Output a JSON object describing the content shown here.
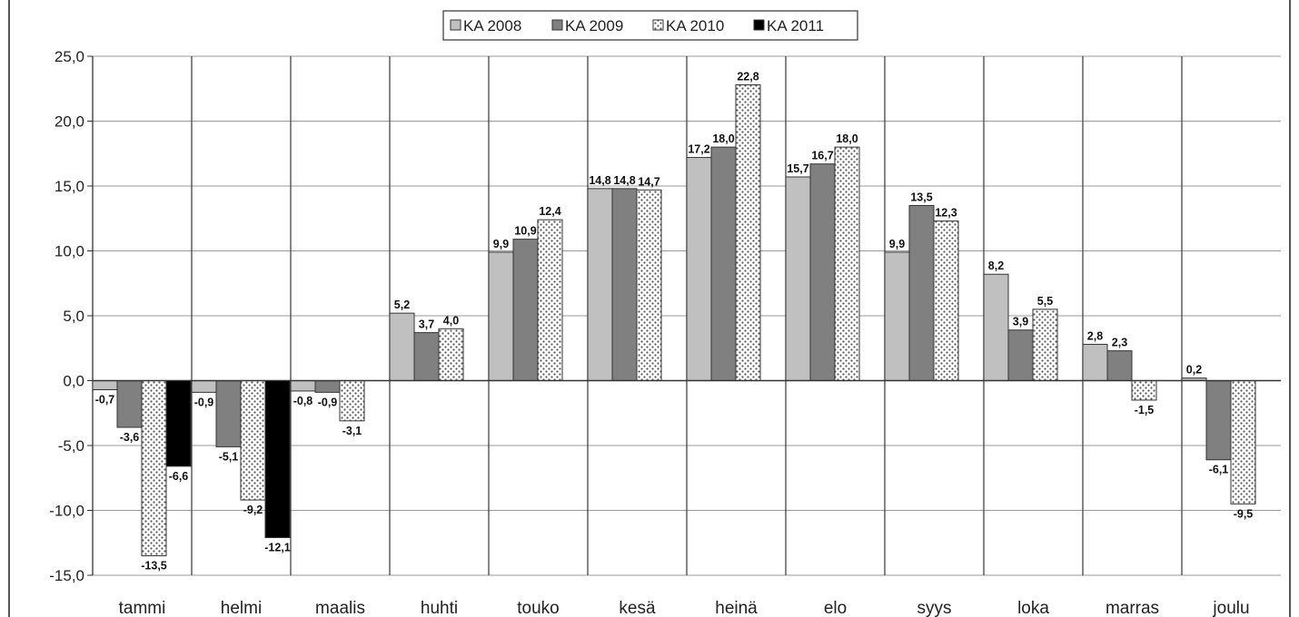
{
  "chart_data": {
    "type": "bar",
    "subtitle": "",
    "categories": [
      "tammi",
      "helmi",
      "maalis",
      "huhti",
      "touko",
      "kesä",
      "heinä",
      "elo",
      "syys",
      "loka",
      "marras",
      "joulu"
    ],
    "series": [
      {
        "name": "KA 2008",
        "color": "#c0c0c0",
        "pattern": "solid",
        "labels": [
          "-0,7",
          "-0,9",
          "-0,8",
          "5,2",
          "9,9",
          "14,8",
          "17,2",
          "15,7",
          "9,9",
          "8,2",
          "2,8",
          "0,2"
        ],
        "values": [
          -0.7,
          -0.9,
          -0.8,
          5.2,
          9.9,
          14.8,
          17.2,
          15.7,
          9.9,
          8.2,
          2.8,
          0.2
        ]
      },
      {
        "name": "KA 2009",
        "color": "#808080",
        "pattern": "solid",
        "labels": [
          "-3,6",
          "-5,1",
          "-0,9",
          "3,7",
          "10,9",
          "14,8",
          "18,0",
          "16,7",
          "13,5",
          "3,9",
          "2,3",
          "-6,1"
        ],
        "values": [
          -3.6,
          -5.1,
          -0.9,
          3.7,
          10.9,
          14.8,
          18.0,
          16.7,
          13.5,
          3.9,
          2.3,
          -6.1
        ]
      },
      {
        "name": "KA 2010",
        "color": "#ffffff",
        "pattern": "dots",
        "labels": [
          "-13,5",
          "-9,2",
          "-3,1",
          "4,0",
          "12,4",
          "14,7",
          "22,8",
          "18,0",
          "12,3",
          "5,5",
          "-1,5",
          "-9,5"
        ],
        "values": [
          -13.5,
          -9.2,
          -3.1,
          4.0,
          12.4,
          14.7,
          22.8,
          18.0,
          12.3,
          5.5,
          -1.5,
          -9.5
        ]
      },
      {
        "name": "KA 2011",
        "color": "#000000",
        "pattern": "solid",
        "labels": [
          "-6,6",
          "-12,1",
          null,
          null,
          null,
          null,
          null,
          null,
          null,
          null,
          null,
          null
        ],
        "values": [
          -6.6,
          -12.1,
          null,
          null,
          null,
          null,
          null,
          null,
          null,
          null,
          null,
          null
        ]
      }
    ],
    "ylim": [
      -15,
      25
    ],
    "yticks": [
      25,
      20,
      15,
      10,
      5,
      0,
      -5,
      -10,
      -15
    ],
    "ytick_labels": [
      "25,0",
      "20,0",
      "15,0",
      "10,0",
      "5,0",
      "0,0",
      "-5,0",
      "-10,0",
      "-15,0"
    ],
    "grid": "vertical category separators and horizontal major gridlines",
    "legend_position": "top"
  }
}
